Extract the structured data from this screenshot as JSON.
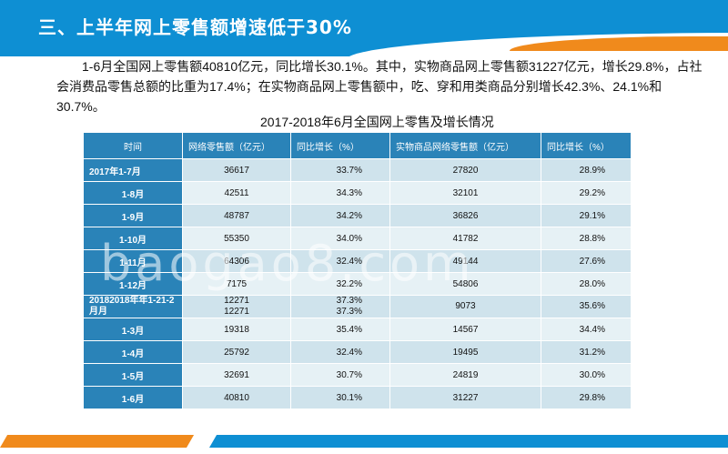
{
  "header": {
    "title": "三、上半年网上零售额增速低于30%"
  },
  "intro": {
    "paragraph": "1-6月全国网上零售额40810亿元，同比增长30.1%。其中，实物商品网上零售额31227亿元，增长29.8%，占社会消费品零售总额的比重为17.4%；在实物商品网上零售额中，吃、穿和用类商品分别增长42.3%、24.1%和30.7%。"
  },
  "table": {
    "title": "2017-2018年6月全国网上零售及增长情况",
    "columns": [
      "时间",
      "网络零售额（亿元）",
      "同比增长（%）",
      "实物商品网络零售额（亿元）",
      "同比增长（%）"
    ],
    "rows": [
      {
        "period": "2017年1-7月",
        "online": "36617",
        "online_growth": "33.7%",
        "physical": "27820",
        "physical_growth": "28.9%"
      },
      {
        "period": "1-8月",
        "online": "42511",
        "online_growth": "34.3%",
        "physical": "32101",
        "physical_growth": "29.2%"
      },
      {
        "period": "1-9月",
        "online": "48787",
        "online_growth": "34.2%",
        "physical": "36826",
        "physical_growth": "29.1%"
      },
      {
        "period": "1-10月",
        "online": "55350",
        "online_growth": "34.0%",
        "physical": "41782",
        "physical_growth": "28.8%"
      },
      {
        "period": "1-11月",
        "online": "64306",
        "online_growth": "32.4%",
        "physical": "49144",
        "physical_growth": "27.6%"
      },
      {
        "period": "1-12月",
        "online": "7175",
        "online_growth": "32.2%",
        "physical": "54806",
        "physical_growth": "28.0%"
      },
      {
        "period": "20182018年年1-21-2月月",
        "online": "12271\n12271",
        "online_growth": "37.3%\n37.3%",
        "physical": "9073",
        "physical_growth": "35.6%"
      },
      {
        "period": "1-3月",
        "online": "19318",
        "online_growth": "35.4%",
        "physical": "14567",
        "physical_growth": "34.4%"
      },
      {
        "period": "1-4月",
        "online": "25792",
        "online_growth": "32.4%",
        "physical": "19495",
        "physical_growth": "31.2%"
      },
      {
        "period": "1-5月",
        "online": "32691",
        "online_growth": "30.7%",
        "physical": "24819",
        "physical_growth": "30.0%"
      },
      {
        "period": "1-6月",
        "online": "40810",
        "online_growth": "30.1%",
        "physical": "31227",
        "physical_growth": "29.8%"
      }
    ]
  },
  "watermark": "baogao8.com",
  "colors": {
    "brand_blue": "#0e8fd3",
    "brand_orange": "#f08a1c",
    "table_header": "#2a83b8",
    "row_dark": "#cfe3ec",
    "row_light": "#e6f1f5"
  }
}
